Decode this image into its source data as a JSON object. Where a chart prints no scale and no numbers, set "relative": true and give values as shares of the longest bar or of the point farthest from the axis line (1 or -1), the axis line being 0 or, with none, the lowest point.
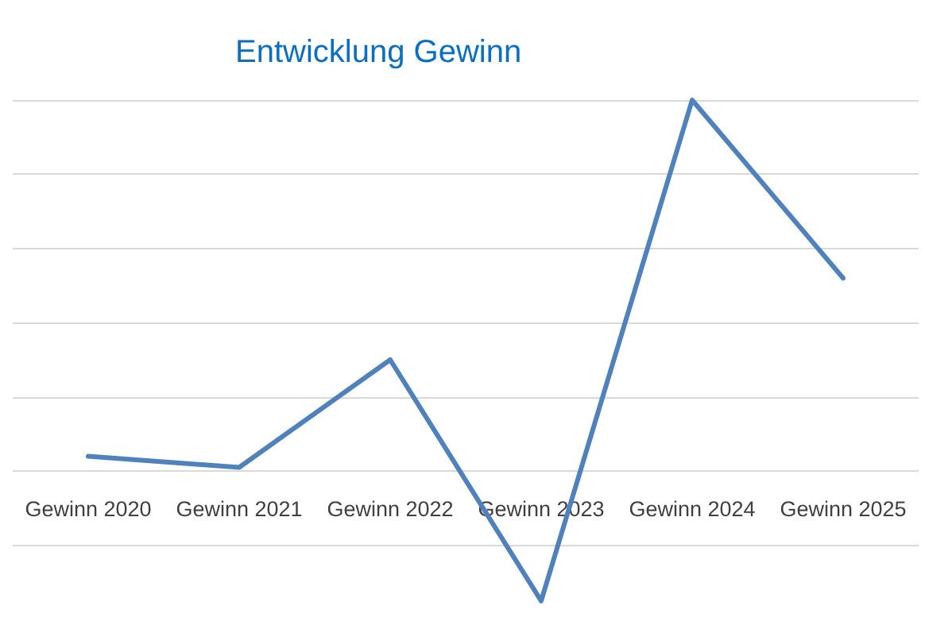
{
  "chart_data": {
    "type": "line",
    "title": "Entwicklung Gewinn",
    "categories": [
      "Gewinn 2020",
      "Gewinn 2021",
      "Gewinn 2022",
      "Gewinn 2023",
      "Gewinn 2024",
      "Gewinn 2025"
    ],
    "series": [
      {
        "color": "#4f81bd",
        "values": [
          0.04,
          0.01,
          0.3,
          -0.35,
          1,
          0.52
        ]
      }
    ],
    "relative": true,
    "grid": "y",
    "marker": "none",
    "line_style": "solid"
  }
}
